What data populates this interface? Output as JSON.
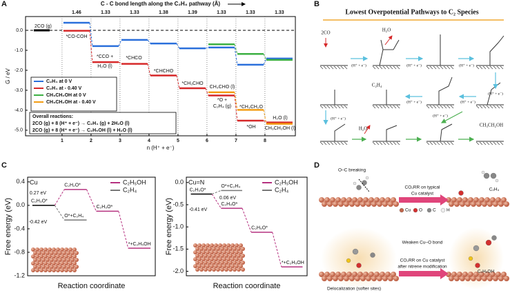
{
  "panel_labels": [
    "A",
    "B",
    "C",
    "D"
  ],
  "chart_data": [
    {
      "type": "step",
      "title": "C - C bond length along the C₂H₄ pathway (Å)",
      "x_label": "n (H⁺ + e⁻)",
      "y_label": "G / eV",
      "x": [
        1,
        2,
        3,
        4,
        5,
        6,
        7,
        8
      ],
      "bond_lengths": [
        1.46,
        1.33,
        1.33,
        1.38,
        1.39,
        1.33,
        1.33,
        1.33
      ],
      "start_level": {
        "label": "2CO (g)",
        "value": 0,
        "color": "#000000"
      },
      "series": [
        {
          "name": "C₂H₄ at 0 V",
          "color": "#2a6fdb",
          "values": [
            0.38,
            -0.79,
            -0.48,
            -0.66,
            -0.9,
            -0.86,
            -1.72,
            -1.41
          ]
        },
        {
          "name": "C₂H₄ at - 0.40 V",
          "color": "#d62728",
          "values": [
            -0.02,
            -1.59,
            -1.68,
            -2.26,
            -2.9,
            -3.26,
            -4.52,
            -4.61
          ]
        },
        {
          "name": "CH₃CH₂OH at 0 V",
          "color": "#3cb043",
          "values": [
            null,
            null,
            null,
            null,
            null,
            -0.7,
            -1.18,
            -1.48
          ]
        },
        {
          "name": "CH₃CH₂OH at - 0.40 V",
          "color": "#f39c12",
          "values": [
            null,
            null,
            null,
            null,
            null,
            -3.1,
            -3.98,
            -4.68
          ]
        }
      ],
      "xlim": [
        -0.26,
        9.05
      ],
      "ylim": [
        -5.28,
        0.69
      ],
      "xticks": [
        1,
        2,
        3,
        4,
        5,
        6,
        7,
        8
      ],
      "yticks": [
        {
          "value": 0,
          "label": "0.0"
        },
        {
          "value": -1,
          "label": "-1.0"
        },
        {
          "value": -2,
          "label": "-2.0"
        },
        {
          "value": -3,
          "label": "-3.0"
        },
        {
          "value": -4,
          "label": "-4.0"
        },
        {
          "value": -5,
          "label": "-5.0"
        }
      ],
      "grid": true,
      "zero_line": true,
      "connectors": false,
      "legend": "lower left",
      "annotations": [
        {
          "text": "*CO-COH",
          "color": "#d62728"
        },
        {
          "text": "*CCO +",
          "color": "#d62728"
        },
        {
          "text": "H₂O (l)",
          "color": "#d62728"
        },
        {
          "text": "*CHCO",
          "color": "#d62728"
        },
        {
          "text": "*CHCHO",
          "color": "#d62728"
        },
        {
          "text": "*CH₃CHO",
          "color": "#d62728"
        },
        {
          "text": "CH₃CHO (l)",
          "color": "#f39c12"
        },
        {
          "text": "*O +",
          "color": "#d62728"
        },
        {
          "text": "C₂H₄ (g)",
          "color": "#d62728"
        },
        {
          "text": "*CH₃CH₂O",
          "color": "#f39c12"
        },
        {
          "text": "*OH",
          "color": "#d62728"
        },
        {
          "text": "H₂O (l)",
          "color": "#d62728"
        },
        {
          "text": "CH₃CH₂OH (l)",
          "color": "#f39c12"
        }
      ],
      "reactions": {
        "title": "Overall reactions:",
        "lines": [
          "2CO (g) + 8 (H⁺ + e⁻)  →  C₂H₄ (g) + 2H₂O (l)",
          "2CO (g) + 8 (H⁺ + e⁻)  →  C₂H₅OH (l) + H₂O (l)"
        ]
      }
    },
    {
      "type": "step",
      "label": "Cu",
      "label_color": "#888888",
      "x_label": "Reaction coordinate",
      "y_label": "Free energy (eV)",
      "categories": [
        null,
        null,
        null,
        null
      ],
      "start_level": {
        "label": "C₂H₃O*",
        "value": 0,
        "color": "#000000"
      },
      "series": [
        {
          "name": "C₂H₅OH",
          "color": "#b5307f",
          "values": [
            null,
            0.27,
            -0.1,
            -0.73
          ],
          "level_labels": [
            null,
            "C₂H₂O*",
            "C₂H₃O*",
            "*+C₂H₅OH"
          ]
        },
        {
          "name": "C₂H₄",
          "color": "#777777",
          "values": [
            null,
            -0.25,
            null,
            null
          ],
          "level_labels": [
            null,
            "O*+C₂H₄",
            null,
            null
          ]
        }
      ],
      "ylim": [
        -1.2,
        0.48
      ],
      "yticks": [
        0.4,
        {
          "value": 0,
          "label": "0.0"
        },
        -0.4,
        -0.8,
        -1.2
      ],
      "grid": false,
      "zero_line": false,
      "connectors": true,
      "legend": "upper right",
      "annotations": [
        {
          "text": "0.27 eV",
          "color": "#b5307f"
        },
        {
          "text": "-0.42 eV",
          "color": "#333333"
        }
      ]
    },
    {
      "type": "step",
      "label": "Cu=N",
      "label_color": "#1a9bb0",
      "x_label": "Reaction coordinate",
      "y_label": "Free energy (eV)",
      "categories": [
        null,
        null,
        null,
        null
      ],
      "start_level": {
        "label": "C₂H₃O*",
        "value": -0.26,
        "color": "#000000"
      },
      "series": [
        {
          "name": "C₂H₅OH",
          "color": "#b5307f",
          "values": [
            null,
            -0.58,
            -1.12,
            -1.9
          ],
          "level_labels": [
            null,
            "C₂H₄O*",
            "C₂H₅O*",
            "*+C₂H₅OH"
          ]
        },
        {
          "name": "C₂H₄",
          "color": "#777777",
          "values": [
            null,
            -0.18,
            null,
            null
          ],
          "level_labels": [
            null,
            "O*+C₂H₄",
            null,
            null
          ]
        }
      ],
      "ylim": [
        -2.1,
        0.12
      ],
      "yticks": [
        {
          "value": 0,
          "label": "0.0"
        },
        -0.5,
        {
          "value": -1,
          "label": "-1.0"
        },
        -1.5,
        {
          "value": -2,
          "label": "-2.0"
        }
      ],
      "grid": false,
      "zero_line": false,
      "connectors": true,
      "legend": "upper right",
      "annotations": [
        {
          "text": "0.06 eV",
          "color": "#333333"
        },
        {
          "text": "-0.41 eV",
          "color": "#b5307f"
        }
      ]
    }
  ],
  "diagram_b": {
    "title": "Lowest Overpotential Pathways to C₂ Species",
    "species": [
      "2CO",
      "H₂O",
      "C₂H₄",
      "H₂O",
      "CH₃CH₂OH"
    ],
    "steps": [
      "(H⁺ + e⁻)",
      "(H⁺ + e⁻)",
      "(H⁺ + e⁻)",
      "(H⁺ + e⁻)",
      "(H⁺ + e⁻)",
      "(H⁺ + e⁻)",
      "(H⁺ + e⁻)",
      "(H⁺ + e⁻)"
    ]
  },
  "diagram_d": {
    "labels": [
      "O–C breaking",
      "CO₂RR on typical",
      "Cu catalyst",
      "C₂H₄",
      "Cu",
      "O",
      "C",
      "H",
      "Weaken Cu–O bond",
      "CO₂RR on  Cu catalyst",
      "after nitrene modification",
      "C₂H₅OH",
      "Delocalization (softer sites)"
    ]
  }
}
